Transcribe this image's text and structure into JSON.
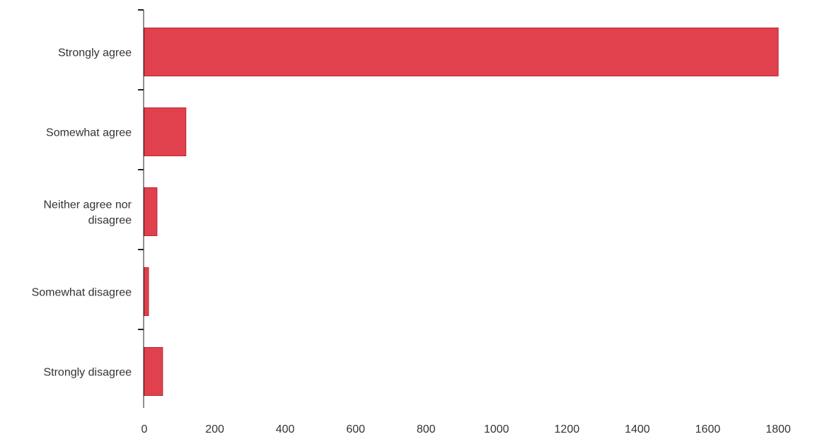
{
  "chart_data": {
    "type": "bar",
    "orientation": "horizontal",
    "categories": [
      [
        "Strongly agree"
      ],
      [
        "Somewhat agree"
      ],
      [
        "Neither agree nor",
        "disagree"
      ],
      [
        "Somewhat disagree"
      ],
      [
        "Strongly disagree"
      ]
    ],
    "values": [
      1800,
      118,
      36,
      12,
      52
    ],
    "title": "",
    "xlabel": "",
    "ylabel": "",
    "xlim": [
      0,
      1800
    ],
    "xticks": [
      0,
      200,
      400,
      600,
      800,
      1000,
      1200,
      1400,
      1600,
      1800
    ],
    "grid": false,
    "legend": "none",
    "colors": {
      "bar_fill": "#e0414c",
      "bar_stroke": "#b8283a",
      "axis": "#222222",
      "text": "#333333"
    }
  }
}
